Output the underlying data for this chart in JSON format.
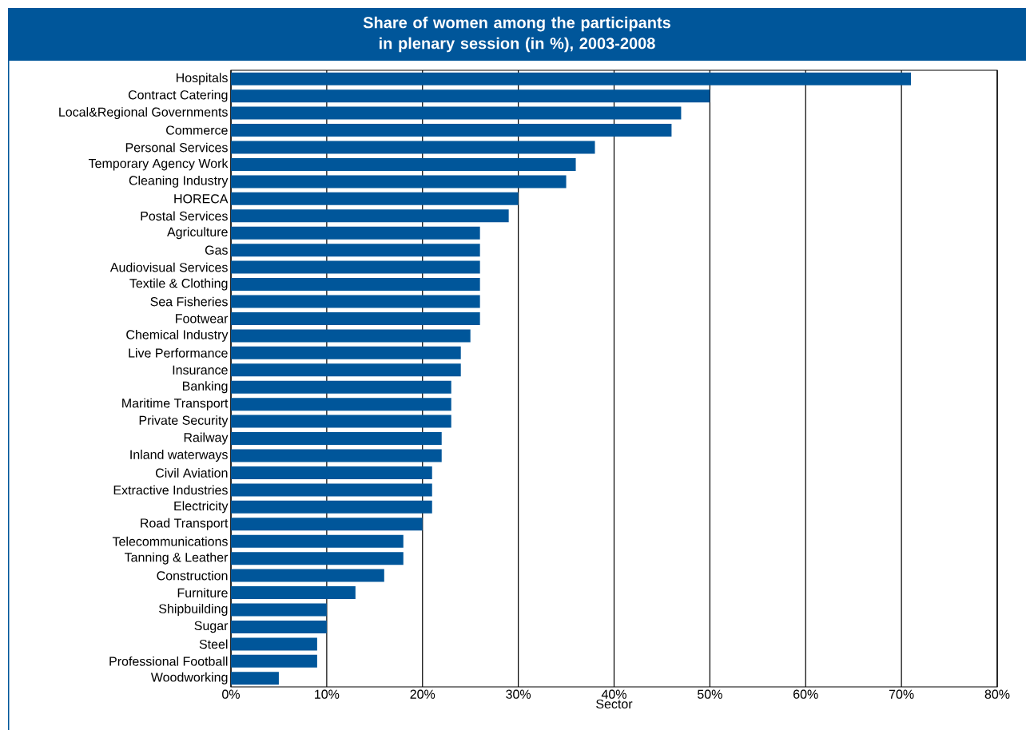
{
  "chart_data": {
    "type": "bar",
    "orientation": "horizontal",
    "title": "Share of women among the participants in plenary session (in %), 2003-2008",
    "xlabel": "Sector",
    "categories": [
      "Hospitals",
      "Contract Catering",
      "Local&Regional Governments",
      "Commerce",
      "Personal Services",
      "Temporary Agency Work",
      "Cleaning Industry",
      "HORECA",
      "Postal Services",
      "Agriculture",
      "Gas",
      "Audiovisual Services",
      "Textile & Clothing",
      "Sea Fisheries",
      "Footwear",
      "Chemical Industry",
      "Live Performance",
      "Insurance",
      "Banking",
      "Maritime Transport",
      "Private Security",
      "Railway",
      "Inland waterways",
      "Civil Aviation",
      "Extractive Industries",
      "Electricity",
      "Road Transport",
      "Telecommunications",
      "Tanning & Leather",
      "Construction",
      "Furniture",
      "Shipbuilding",
      "Sugar",
      "Steel",
      "Professional Football",
      "Woodworking"
    ],
    "values": [
      71,
      50,
      47,
      46,
      38,
      36,
      35,
      30,
      29,
      26,
      26,
      26,
      26,
      26,
      26,
      25,
      24,
      24,
      23,
      23,
      23,
      22,
      22,
      21,
      21,
      21,
      20,
      18,
      18,
      16,
      13,
      10,
      10,
      9,
      9,
      5
    ],
    "color": "#00569a",
    "xlim": [
      0,
      80
    ],
    "xticks": [
      {
        "value": 0,
        "label": "0%"
      },
      {
        "value": 10,
        "label": "10%"
      },
      {
        "value": 20,
        "label": "20%"
      },
      {
        "value": 30,
        "label": "30%"
      },
      {
        "value": 40,
        "label": "40%"
      },
      {
        "value": 50,
        "label": "50%"
      },
      {
        "value": 60,
        "label": "60%"
      },
      {
        "value": 70,
        "label": "70%"
      },
      {
        "value": 80,
        "label": "80%"
      }
    ],
    "grid": "x"
  }
}
